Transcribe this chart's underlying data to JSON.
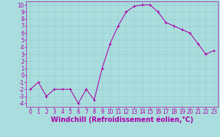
{
  "x": [
    0,
    1,
    2,
    3,
    4,
    5,
    6,
    7,
    8,
    9,
    10,
    11,
    12,
    13,
    14,
    15,
    16,
    17,
    18,
    19,
    20,
    21,
    22,
    23
  ],
  "y": [
    -2,
    -1,
    -3,
    -2,
    -2,
    -2,
    -4,
    -2,
    -3.5,
    1,
    4.5,
    7,
    9,
    9.8,
    10,
    10,
    9,
    7.5,
    7,
    6.5,
    6,
    4.5,
    3,
    3.5
  ],
  "line_color": "#aa00aa",
  "marker_color": "#aa00aa",
  "bg_color": "#aadddd",
  "grid_color": "#bbdddd",
  "xlabel": "Windchill (Refroidissement éolien,°C)",
  "xlabel_color": "#aa00aa",
  "xlim": [
    -0.5,
    23.5
  ],
  "ylim": [
    -4.5,
    10.5
  ],
  "yticks": [
    -4,
    -3,
    -2,
    -1,
    0,
    1,
    2,
    3,
    4,
    5,
    6,
    7,
    8,
    9,
    10
  ],
  "xticks": [
    0,
    1,
    2,
    3,
    4,
    5,
    6,
    7,
    8,
    9,
    10,
    11,
    12,
    13,
    14,
    15,
    16,
    17,
    18,
    19,
    20,
    21,
    22,
    23
  ],
  "tick_color": "#aa00aa",
  "tick_fontsize": 5.5,
  "xlabel_fontsize": 7.0
}
